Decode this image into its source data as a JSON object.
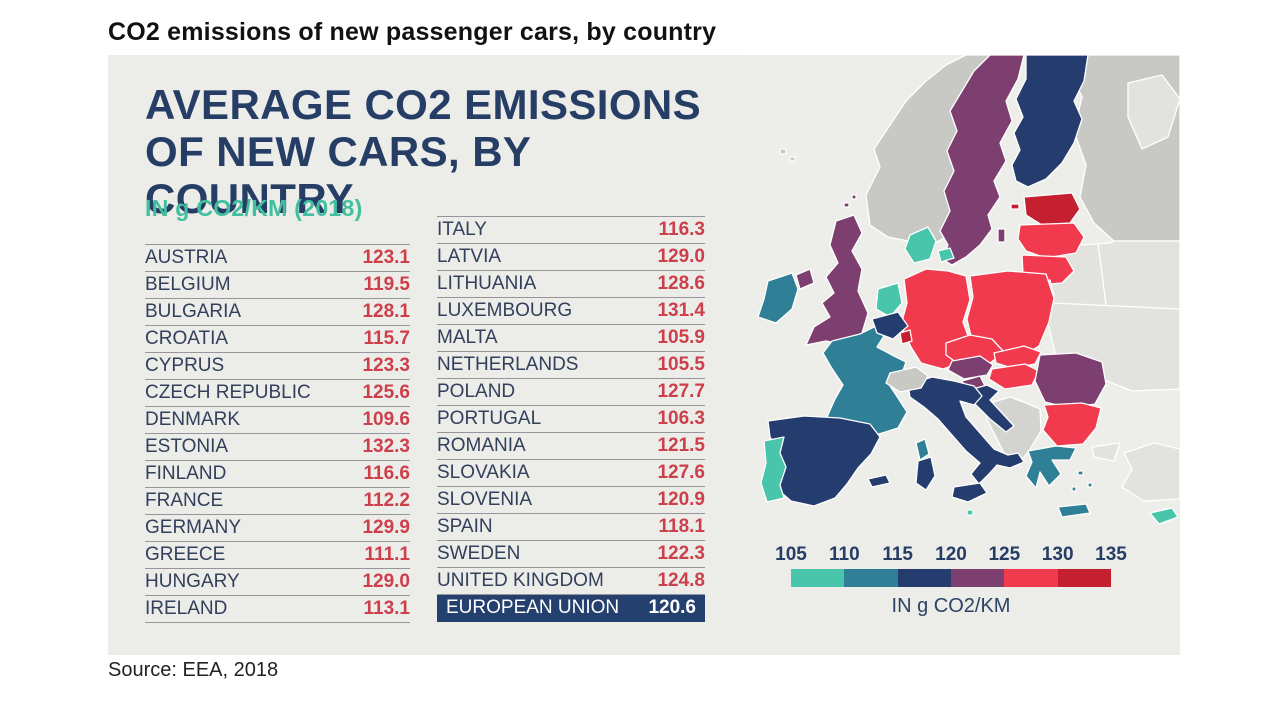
{
  "page": {
    "title": "CO2 emissions of new passenger cars, by country",
    "source": "Source: EEA, 2018"
  },
  "infographic": {
    "heading_line1": "AVERAGE CO2 EMISSIONS",
    "heading_line2": "OF NEW CARS, BY COUNTRY",
    "subtitle": "IN g CO2/KM (2018)"
  },
  "table": {
    "left": [
      {
        "name": "AUSTRIA",
        "value": "123.1"
      },
      {
        "name": "BELGIUM",
        "value": "119.5"
      },
      {
        "name": "BULGARIA",
        "value": "128.1"
      },
      {
        "name": "CROATIA",
        "value": "115.7"
      },
      {
        "name": "CYPRUS",
        "value": "123.3"
      },
      {
        "name": "CZECH REPUBLIC",
        "value": "125.6"
      },
      {
        "name": "DENMARK",
        "value": "109.6"
      },
      {
        "name": "ESTONIA",
        "value": "132.3"
      },
      {
        "name": "FINLAND",
        "value": "116.6"
      },
      {
        "name": "FRANCE",
        "value": "112.2"
      },
      {
        "name": "GERMANY",
        "value": "129.9"
      },
      {
        "name": "GREECE",
        "value": "111.1"
      },
      {
        "name": "HUNGARY",
        "value": "129.0"
      },
      {
        "name": "IRELAND",
        "value": "113.1"
      }
    ],
    "right": [
      {
        "name": "ITALY",
        "value": "116.3"
      },
      {
        "name": "LATVIA",
        "value": "129.0"
      },
      {
        "name": "LITHUANIA",
        "value": "128.6"
      },
      {
        "name": "LUXEMBOURG",
        "value": "131.4"
      },
      {
        "name": "MALTA",
        "value": "105.9"
      },
      {
        "name": "NETHERLANDS",
        "value": "105.5"
      },
      {
        "name": "POLAND",
        "value": "127.7"
      },
      {
        "name": "PORTUGAL",
        "value": "106.3"
      },
      {
        "name": "ROMANIA",
        "value": "121.5"
      },
      {
        "name": "SLOVAKIA",
        "value": "127.6"
      },
      {
        "name": "SLOVENIA",
        "value": "120.9"
      },
      {
        "name": "SPAIN",
        "value": "118.1"
      },
      {
        "name": "SWEDEN",
        "value": "122.3"
      },
      {
        "name": "UNITED KINGDOM",
        "value": "124.8"
      },
      {
        "name": "EUROPEAN UNION",
        "value": "120.6",
        "highlight": true
      }
    ]
  },
  "legend": {
    "ticks": [
      "105",
      "110",
      "115",
      "120",
      "125",
      "130",
      "135"
    ],
    "colors": [
      "#49C5AB",
      "#2F7F96",
      "#243C6E",
      "#7D3E70",
      "#F23A4F",
      "#C52030"
    ],
    "bucket_min": 105,
    "bucket_size": 5,
    "label": "IN g CO2/KM"
  },
  "map": {
    "eu_highlight_color": "#24406F",
    "cyprus_island_fill": "#49C5AB"
  },
  "chart_data": {
    "type": "heatmap",
    "subtype": "choropleth-map-with-table",
    "title": "AVERAGE CO2 EMISSIONS OF NEW CARS, BY COUNTRY",
    "subtitle": "IN g CO2/KM (2018)",
    "unit": "g CO2/km",
    "year": 2018,
    "categories": [
      "AUSTRIA",
      "BELGIUM",
      "BULGARIA",
      "CROATIA",
      "CYPRUS",
      "CZECH REPUBLIC",
      "DENMARK",
      "ESTONIA",
      "FINLAND",
      "FRANCE",
      "GERMANY",
      "GREECE",
      "HUNGARY",
      "IRELAND",
      "ITALY",
      "LATVIA",
      "LITHUANIA",
      "LUXEMBOURG",
      "MALTA",
      "NETHERLANDS",
      "POLAND",
      "PORTUGAL",
      "ROMANIA",
      "SLOVAKIA",
      "SLOVENIA",
      "SPAIN",
      "SWEDEN",
      "UNITED KINGDOM",
      "EUROPEAN UNION"
    ],
    "values": [
      123.1,
      119.5,
      128.1,
      115.7,
      123.3,
      125.6,
      109.6,
      132.3,
      116.6,
      112.2,
      129.9,
      111.1,
      129.0,
      113.1,
      116.3,
      129.0,
      128.6,
      131.4,
      105.9,
      105.5,
      127.7,
      106.3,
      121.5,
      127.6,
      120.9,
      118.1,
      122.3,
      124.8,
      120.6
    ],
    "legend": {
      "ticks": [
        105,
        110,
        115,
        120,
        125,
        130,
        135
      ],
      "colors": [
        "#49C5AB",
        "#2F7F96",
        "#243C6E",
        "#7D3E70",
        "#F23A4F",
        "#C52030"
      ],
      "position": "bottom-right"
    },
    "source": "EEA, 2018"
  }
}
